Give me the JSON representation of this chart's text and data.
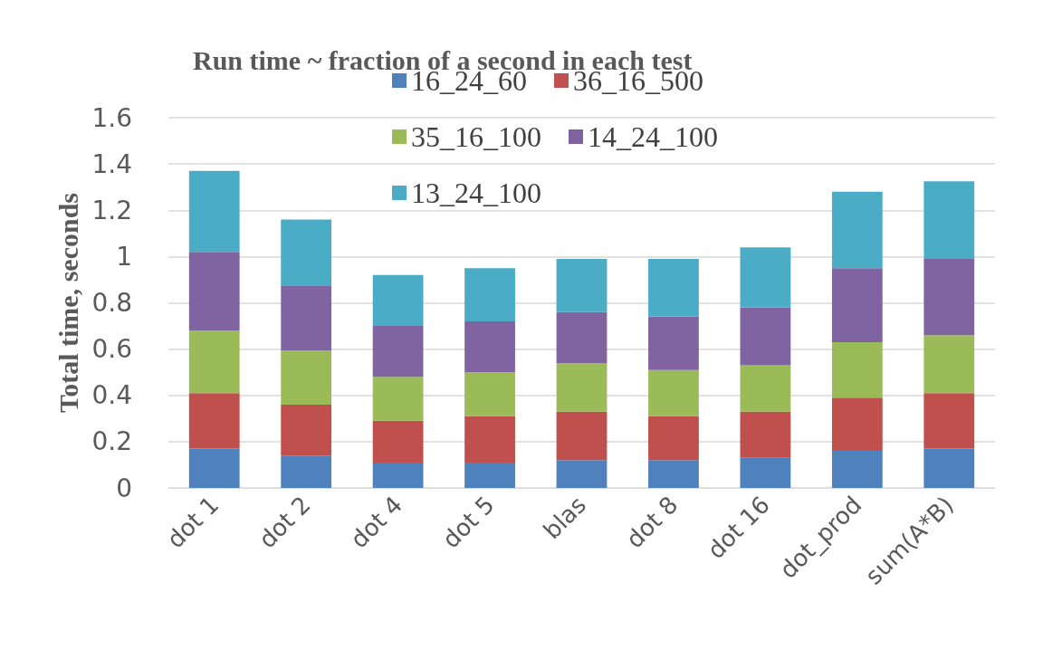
{
  "chart_data": {
    "type": "bar",
    "stacked": true,
    "title": "Run time ~ fraction of a second in each test",
    "ylabel": "Total time, seconds",
    "categories": [
      "dot 1",
      "dot 2",
      "dot 4",
      "dot 5",
      "blas",
      "dot 8",
      "dot 16",
      "dot_prod",
      "sum(A*B)"
    ],
    "series": [
      {
        "name": "16_24_60",
        "color": "#4f81bd",
        "values": [
          0.17,
          0.14,
          0.11,
          0.11,
          0.12,
          0.12,
          0.13,
          0.16,
          0.17
        ]
      },
      {
        "name": "36_16_500",
        "color": "#c0504d",
        "values": [
          0.24,
          0.22,
          0.18,
          0.2,
          0.21,
          0.19,
          0.2,
          0.23,
          0.24
        ]
      },
      {
        "name": "35_16_100",
        "color": "#9bbb59",
        "values": [
          0.27,
          0.235,
          0.19,
          0.19,
          0.21,
          0.2,
          0.2,
          0.24,
          0.25
        ]
      },
      {
        "name": "14_24_100",
        "color": "#8064a2",
        "values": [
          0.34,
          0.28,
          0.22,
          0.22,
          0.22,
          0.23,
          0.25,
          0.32,
          0.33
        ]
      },
      {
        "name": "13_24_100",
        "color": "#4bacc6",
        "values": [
          0.35,
          0.285,
          0.22,
          0.23,
          0.23,
          0.25,
          0.26,
          0.33,
          0.335
        ]
      }
    ],
    "ylim": [
      0,
      1.6
    ],
    "yticks": [
      0,
      0.2,
      0.4,
      0.6,
      0.8,
      1,
      1.2,
      1.4,
      1.6
    ],
    "grid": "y",
    "legend": "top"
  }
}
